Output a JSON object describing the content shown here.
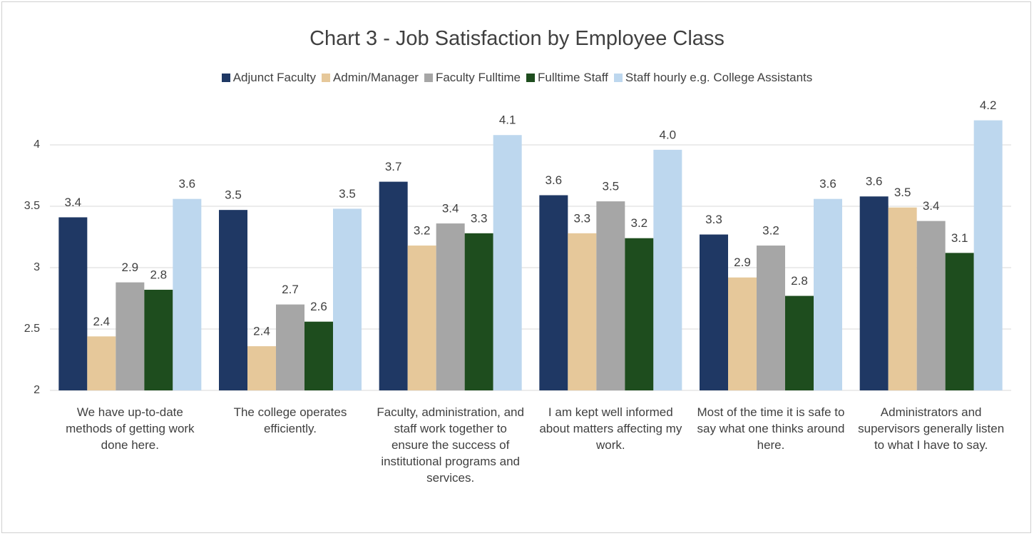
{
  "chart_data": {
    "type": "bar",
    "title": "Chart 3 - Job Satisfaction by Employee Class",
    "categories": [
      "We have up-to-date methods of getting work done here.",
      "The college operates efficiently.",
      "Faculty, administration, and staff work together to ensure the success of institutional programs and services.",
      "I am kept well informed about matters affecting my work.",
      "Most of the time it is safe to say what one thinks around here.",
      "Administrators and supervisors generally listen to what I have to say."
    ],
    "series": [
      {
        "name": "Adjunct Faculty",
        "color": "#1f3864",
        "values": [
          3.41,
          3.47,
          3.7,
          3.59,
          3.27,
          3.58
        ],
        "value_labels": [
          "3.4",
          "3.5",
          "3.7",
          "3.6",
          "3.3",
          "3.6"
        ]
      },
      {
        "name": "Admin/Manager",
        "color": "#e6c89a",
        "values": [
          2.44,
          2.36,
          3.18,
          3.28,
          2.92,
          3.49
        ],
        "value_labels": [
          "2.4",
          "2.4",
          "3.2",
          "3.3",
          "2.9",
          "3.5"
        ]
      },
      {
        "name": "Faculty Fulltime",
        "color": "#a6a6a6",
        "values": [
          2.88,
          2.7,
          3.36,
          3.54,
          3.18,
          3.38
        ],
        "value_labels": [
          "2.9",
          "2.7",
          "3.4",
          "3.5",
          "3.2",
          "3.4"
        ]
      },
      {
        "name": "Fulltime Staff",
        "color": "#1e4d1e",
        "values": [
          2.82,
          2.56,
          3.28,
          3.24,
          2.77,
          3.12
        ],
        "value_labels": [
          "2.8",
          "2.6",
          "3.3",
          "3.2",
          "2.8",
          "3.1"
        ]
      },
      {
        "name": "Staff hourly e.g. College Assistants",
        "color": "#bdd7ee",
        "values": [
          3.56,
          3.48,
          4.08,
          3.96,
          3.56,
          4.2
        ],
        "value_labels": [
          "3.6",
          "3.5",
          "4.1",
          "4.0",
          "3.6",
          "4.2"
        ]
      }
    ],
    "ylim": [
      2,
      4.25
    ],
    "yticks": [
      2,
      2.5,
      3,
      3.5,
      4
    ],
    "grid": true,
    "legend": "top"
  }
}
